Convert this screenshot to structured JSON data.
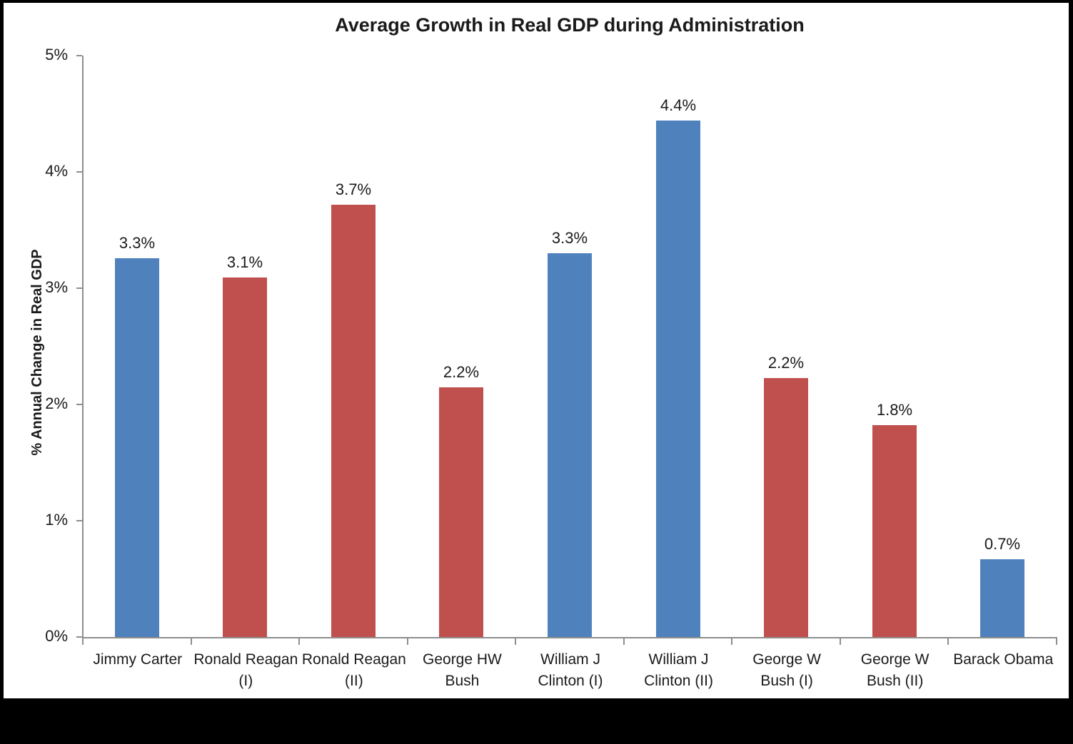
{
  "chart_data": {
    "type": "bar",
    "title": "Average Growth in Real GDP during Administration",
    "ylabel": "% Annual Change in Real GDP",
    "xlabel": "",
    "ylim": [
      0,
      5
    ],
    "ytick_labels": [
      "0%",
      "1%",
      "2%",
      "3%",
      "4%",
      "5%"
    ],
    "grid": false,
    "legend": false,
    "categories": [
      "Jimmy Carter",
      "Ronald Reagan (I)",
      "Ronald Reagan (II)",
      "George HW Bush",
      "William J Clinton (I)",
      "William J Clinton (II)",
      "George W Bush (I)",
      "George W Bush (II)",
      "Barack Obama"
    ],
    "category_label_lines": [
      [
        "Jimmy Carter"
      ],
      [
        "Ronald Reagan",
        "(I)"
      ],
      [
        "Ronald Reagan",
        "(II)"
      ],
      [
        "George HW",
        "Bush"
      ],
      [
        "William J",
        "Clinton (I)"
      ],
      [
        "William J",
        "Clinton (II)"
      ],
      [
        "George W",
        "Bush (I)"
      ],
      [
        "George W",
        "Bush (II)"
      ],
      [
        "Barack Obama"
      ]
    ],
    "values": [
      3.3,
      3.1,
      3.7,
      2.2,
      3.3,
      4.4,
      2.2,
      1.8,
      0.7
    ],
    "data_labels": [
      "3.3%",
      "3.1%",
      "3.7%",
      "2.2%",
      "3.3%",
      "4.4%",
      "2.2%",
      "1.8%",
      "0.7%"
    ],
    "bar_heights_pct": [
      3.26,
      3.09,
      3.72,
      2.15,
      3.3,
      4.44,
      2.23,
      1.82,
      0.67
    ],
    "bar_colors": [
      "#4F81BD",
      "#C0504D",
      "#C0504D",
      "#C0504D",
      "#4F81BD",
      "#4F81BD",
      "#C0504D",
      "#C0504D",
      "#4F81BD"
    ],
    "colors": {
      "democrat_blue": "#4F81BD",
      "republican_red": "#C0504D",
      "axis_gray": "#8E8E8E",
      "plot_background": "#FFFFFF",
      "frame_background": "#000000"
    }
  }
}
